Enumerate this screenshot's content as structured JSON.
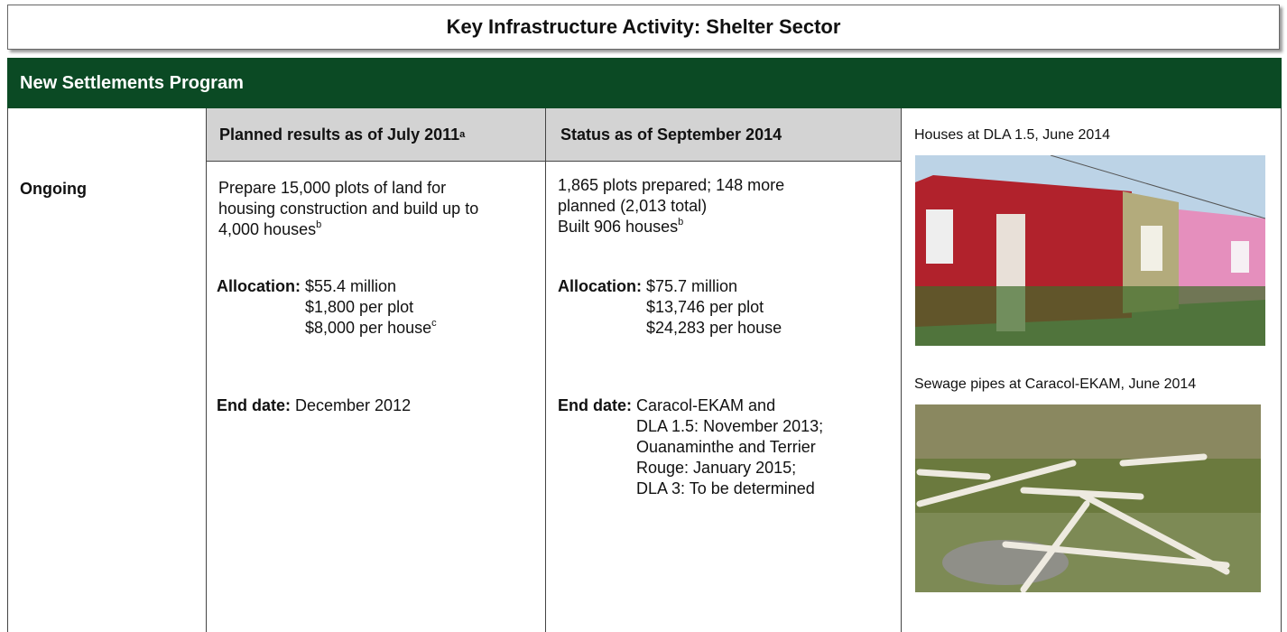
{
  "header": {
    "title": "Key Infrastructure Activity: Shelter Sector"
  },
  "program": {
    "title": "New Settlements Program"
  },
  "table": {
    "status": "Ongoing",
    "planned": {
      "heading": "Planned results as of July 2011",
      "heading_note": "a",
      "description": [
        "Prepare 15,000 plots of land for",
        "housing construction and build up to",
        "4,000 houses"
      ],
      "description_note": "b",
      "allocation_label": "Allocation:",
      "allocation": [
        "$55.4 million",
        "$1,800 per plot",
        "$8,000 per house"
      ],
      "allocation_note": "c",
      "end_label": "End date:",
      "end_date": [
        "December 2012"
      ]
    },
    "current": {
      "heading": "Status as of September 2014",
      "description": [
        "1,865 plots prepared; 148 more",
        "planned (2,013 total)",
        "Built 906 houses"
      ],
      "description_note": "b",
      "allocation_label": "Allocation:",
      "allocation": [
        "$75.7 million",
        "$13,746 per plot",
        "$24,283 per house"
      ],
      "end_label": "End date:",
      "end_date": [
        "Caracol-EKAM and",
        "DLA 1.5: November 2013;",
        "Ouanaminthe and Terrier",
        "Rouge: January 2015;",
        "DLA 3: To be determined"
      ]
    }
  },
  "photos": [
    {
      "caption": "Houses at DLA 1.5, June 2014"
    },
    {
      "caption": "Sewage pipes at Caracol-EKAM, June 2014"
    }
  ]
}
